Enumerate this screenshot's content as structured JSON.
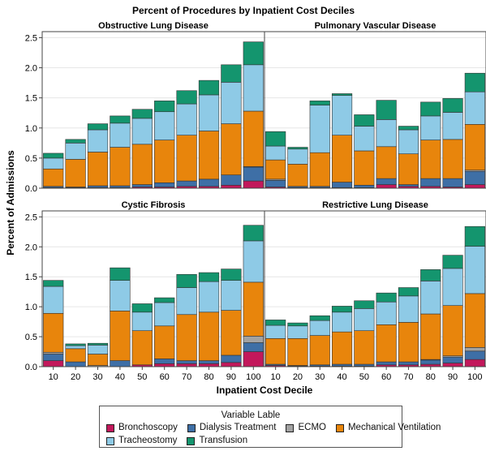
{
  "chart_data": {
    "type": "bar",
    "stacked": true,
    "title": "Percent of Procedures by Inpatient Cost Deciles",
    "xlabel": "Inpatient Cost Decile",
    "ylabel": "Percent of Admissions",
    "ylim": [
      0,
      2.6
    ],
    "yticks": [
      "0.0",
      "0.5",
      "1.0",
      "1.5",
      "2.0",
      "2.5"
    ],
    "categories": [
      "10",
      "20",
      "30",
      "40",
      "50",
      "60",
      "70",
      "80",
      "90",
      "100"
    ],
    "grid": true,
    "legend": {
      "title": "Variable Lable",
      "position": "bottom"
    },
    "series_styles": [
      {
        "name": "Bronchoscopy",
        "color": "#c2185b"
      },
      {
        "name": "Dialysis Treatment",
        "color": "#3e6fa6"
      },
      {
        "name": "ECMO",
        "color": "#a2a2a2"
      },
      {
        "name": "Mechanical Ventilation",
        "color": "#e8850c"
      },
      {
        "name": "Tracheostomy",
        "color": "#8ecae6"
      },
      {
        "name": "Transfusion",
        "color": "#14956e"
      }
    ],
    "panels": [
      {
        "title": "Obstructive Lung Disease",
        "series": [
          {
            "name": "Bronchoscopy",
            "values": [
              0.01,
              0.01,
              0.01,
              0.01,
              0.02,
              0.02,
              0.03,
              0.03,
              0.05,
              0.12
            ]
          },
          {
            "name": "Dialysis Treatment",
            "values": [
              0.02,
              0.01,
              0.03,
              0.03,
              0.04,
              0.07,
              0.09,
              0.12,
              0.17,
              0.23
            ]
          },
          {
            "name": "ECMO",
            "values": [
              0,
              0,
              0,
              0,
              0,
              0,
              0,
              0,
              0,
              0.01
            ]
          },
          {
            "name": "Mechanical Ventilation",
            "values": [
              0.29,
              0.46,
              0.56,
              0.64,
              0.67,
              0.71,
              0.76,
              0.8,
              0.85,
              0.92
            ]
          },
          {
            "name": "Tracheostomy",
            "values": [
              0.18,
              0.27,
              0.37,
              0.4,
              0.43,
              0.47,
              0.52,
              0.6,
              0.69,
              0.77
            ]
          },
          {
            "name": "Transfusion",
            "values": [
              0.08,
              0.06,
              0.1,
              0.12,
              0.15,
              0.18,
              0.22,
              0.24,
              0.29,
              0.38
            ]
          }
        ]
      },
      {
        "title": "Pulmonary Vascular Disease",
        "series": [
          {
            "name": "Bronchoscopy",
            "values": [
              0.02,
              0.01,
              0.01,
              0.01,
              0.01,
              0.06,
              0.03,
              0.03,
              0.02,
              0.06
            ]
          },
          {
            "name": "Dialysis Treatment",
            "values": [
              0.11,
              0.02,
              0.02,
              0.09,
              0.04,
              0.1,
              0.03,
              0.13,
              0.14,
              0.22
            ]
          },
          {
            "name": "ECMO",
            "values": [
              0.02,
              0,
              0,
              0,
              0,
              0,
              0,
              0,
              0,
              0.02
            ]
          },
          {
            "name": "Mechanical Ventilation",
            "values": [
              0.32,
              0.37,
              0.56,
              0.78,
              0.57,
              0.53,
              0.51,
              0.64,
              0.65,
              0.76
            ]
          },
          {
            "name": "Tracheostomy",
            "values": [
              0.23,
              0.25,
              0.79,
              0.66,
              0.41,
              0.45,
              0.4,
              0.4,
              0.45,
              0.54
            ]
          },
          {
            "name": "Transfusion",
            "values": [
              0.24,
              0.03,
              0.07,
              0.03,
              0.19,
              0.32,
              0.06,
              0.23,
              0.23,
              0.31
            ]
          }
        ]
      },
      {
        "title": "Cystic Fibrosis",
        "series": [
          {
            "name": "Bronchoscopy",
            "values": [
              0.1,
              0,
              0,
              0,
              0.03,
              0.05,
              0.05,
              0.05,
              0.07,
              0.25
            ]
          },
          {
            "name": "Dialysis Treatment",
            "values": [
              0.11,
              0.08,
              0,
              0.1,
              0,
              0.08,
              0.05,
              0.05,
              0.12,
              0.15
            ]
          },
          {
            "name": "ECMO",
            "values": [
              0.03,
              0,
              0.02,
              0,
              0,
              0,
              0,
              0,
              0,
              0.11
            ]
          },
          {
            "name": "Mechanical Ventilation",
            "values": [
              0.65,
              0.22,
              0.19,
              0.83,
              0.57,
              0.55,
              0.77,
              0.81,
              0.75,
              0.9
            ]
          },
          {
            "name": "Tracheostomy",
            "values": [
              0.45,
              0.05,
              0.15,
              0.51,
              0.31,
              0.39,
              0.45,
              0.51,
              0.5,
              0.69
            ]
          },
          {
            "name": "Transfusion",
            "values": [
              0.1,
              0.03,
              0.03,
              0.21,
              0.14,
              0.08,
              0.22,
              0.15,
              0.19,
              0.26
            ]
          }
        ]
      },
      {
        "title": "Restrictive Lung Disease",
        "series": [
          {
            "name": "Bronchoscopy",
            "values": [
              0.02,
              0.01,
              0.01,
              0.01,
              0.01,
              0.03,
              0.03,
              0.04,
              0.06,
              0.12
            ]
          },
          {
            "name": "Dialysis Treatment",
            "values": [
              0.02,
              0.01,
              0.02,
              0.03,
              0.03,
              0.05,
              0.05,
              0.07,
              0.1,
              0.14
            ]
          },
          {
            "name": "ECMO",
            "values": [
              0,
              0,
              0,
              0,
              0,
              0,
              0,
              0.01,
              0.02,
              0.06
            ]
          },
          {
            "name": "Mechanical Ventilation",
            "values": [
              0.43,
              0.45,
              0.49,
              0.54,
              0.56,
              0.62,
              0.66,
              0.76,
              0.84,
              0.9
            ]
          },
          {
            "name": "Tracheostomy",
            "values": [
              0.22,
              0.21,
              0.25,
              0.33,
              0.37,
              0.38,
              0.44,
              0.55,
              0.62,
              0.79
            ]
          },
          {
            "name": "Transfusion",
            "values": [
              0.09,
              0.05,
              0.08,
              0.1,
              0.13,
              0.15,
              0.14,
              0.19,
              0.22,
              0.33
            ]
          }
        ]
      }
    ]
  }
}
